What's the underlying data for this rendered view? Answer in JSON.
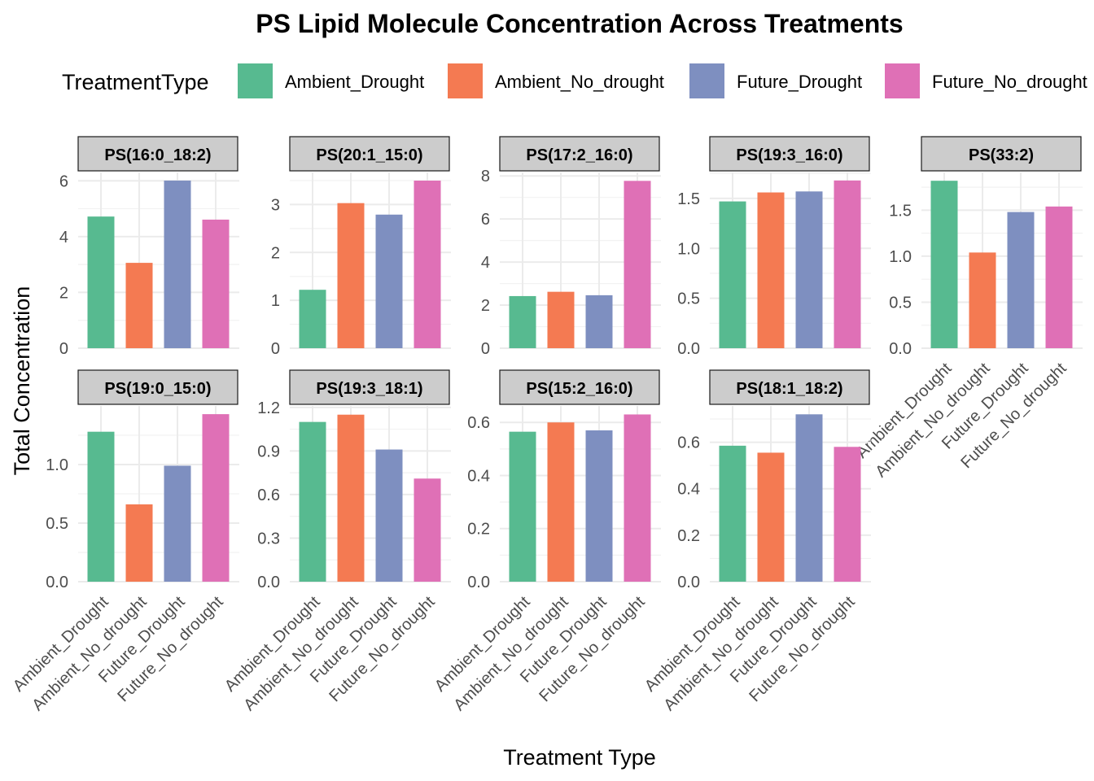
{
  "title": "PS  Lipid Molecule Concentration Across Treatments",
  "legend": {
    "title": "TreatmentType",
    "items": [
      {
        "label": "Ambient_Drought",
        "color": "#57BA90"
      },
      {
        "label": "Ambient_No_drought",
        "color": "#F47A52"
      },
      {
        "label": "Future_Drought",
        "color": "#7E8FC0"
      },
      {
        "label": "Future_No_drought",
        "color": "#DF70B6"
      }
    ]
  },
  "axes": {
    "xlabel": "Treatment Type",
    "ylabel": "Total Concentration"
  },
  "chart_data": {
    "type": "bar",
    "categories": [
      "Ambient_Drought",
      "Ambient_No_drought",
      "Future_Drought",
      "Future_No_drought"
    ],
    "facets": [
      {
        "strip": "PS(16:0_18:2)",
        "values": [
          4.72,
          3.06,
          6.01,
          4.61
        ],
        "ylim": [
          0,
          6.3
        ],
        "ticks": [
          "0",
          "2",
          "4",
          "6"
        ],
        "tick_values": [
          0,
          2,
          4,
          6
        ]
      },
      {
        "strip": "PS(20:1_15:0)",
        "values": [
          1.22,
          3.03,
          2.79,
          3.5
        ],
        "ylim": [
          0,
          3.67
        ],
        "ticks": [
          "0",
          "1",
          "2",
          "3"
        ],
        "tick_values": [
          0,
          1,
          2,
          3
        ]
      },
      {
        "strip": "PS(17:2_16:0)",
        "values": [
          2.42,
          2.62,
          2.46,
          7.77
        ],
        "ylim": [
          0,
          8.16
        ],
        "ticks": [
          "0",
          "2",
          "4",
          "6",
          "8"
        ],
        "tick_values": [
          0,
          2,
          4,
          6,
          8
        ]
      },
      {
        "strip": "PS(19:3_16:0)",
        "values": [
          1.47,
          1.56,
          1.57,
          1.68
        ],
        "ylim": [
          0,
          1.76
        ],
        "ticks": [
          "0.0",
          "0.5",
          "1.0",
          "1.5"
        ],
        "tick_values": [
          0,
          0.5,
          1.0,
          1.5
        ]
      },
      {
        "strip": "PS(33:2)",
        "values": [
          1.82,
          1.04,
          1.48,
          1.54
        ],
        "ylim": [
          0,
          1.91
        ],
        "ticks": [
          "0.0",
          "0.5",
          "1.0",
          "1.5"
        ],
        "tick_values": [
          0,
          0.5,
          1.0,
          1.5
        ]
      },
      {
        "strip": "PS(19:0_15:0)",
        "values": [
          1.28,
          0.66,
          0.99,
          1.43
        ],
        "ylim": [
          0,
          1.5
        ],
        "ticks": [
          "0.0",
          "0.5",
          "1.0"
        ],
        "tick_values": [
          0,
          0.5,
          1.0
        ]
      },
      {
        "strip": "PS(19:3_18:1)",
        "values": [
          1.1,
          1.15,
          0.91,
          0.71
        ],
        "ylim": [
          0,
          1.21
        ],
        "ticks": [
          "0.0",
          "0.3",
          "0.6",
          "0.9",
          "1.2"
        ],
        "tick_values": [
          0,
          0.3,
          0.6,
          0.9,
          1.2
        ]
      },
      {
        "strip": "PS(15:2_16:0)",
        "values": [
          0.565,
          0.6,
          0.57,
          0.63
        ],
        "ylim": [
          0,
          0.662
        ],
        "ticks": [
          "0.0",
          "0.2",
          "0.4",
          "0.6"
        ],
        "tick_values": [
          0,
          0.2,
          0.4,
          0.6
        ]
      },
      {
        "strip": "PS(18:1_18:2)",
        "values": [
          0.585,
          0.555,
          0.72,
          0.58
        ],
        "ylim": [
          0,
          0.756
        ],
        "ticks": [
          "0.0",
          "0.2",
          "0.4",
          "0.6"
        ],
        "tick_values": [
          0,
          0.2,
          0.4,
          0.6
        ]
      }
    ],
    "grid": true,
    "legend_position": "top"
  }
}
